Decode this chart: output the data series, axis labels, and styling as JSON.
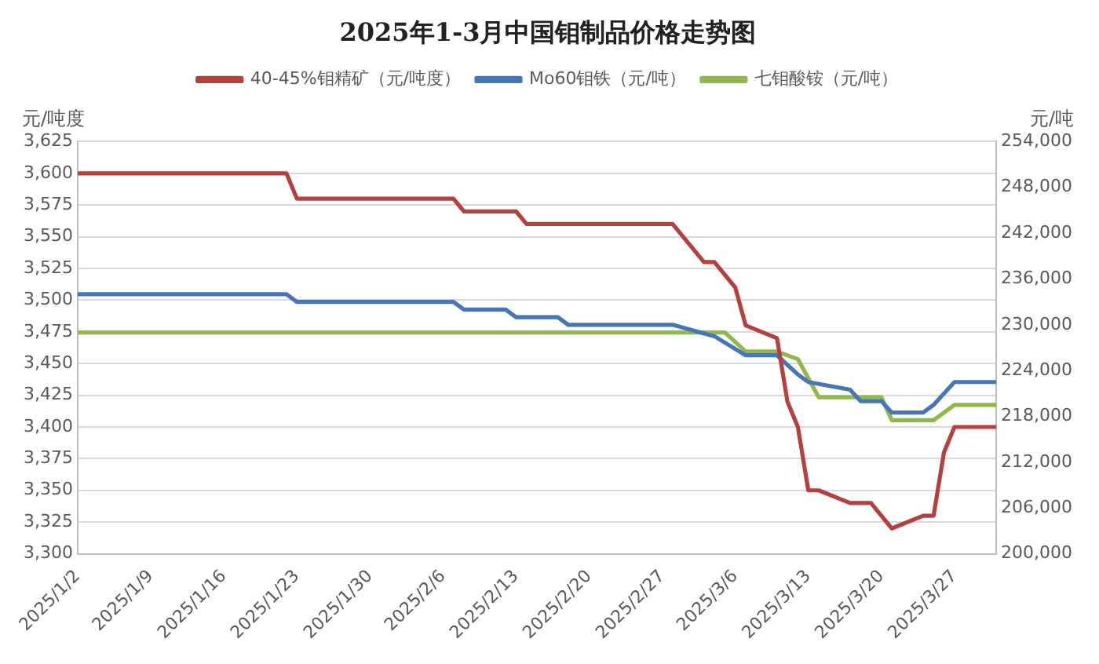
{
  "chart_data": {
    "type": "line",
    "title": "2025年1-3月中国钼制品价格走势图",
    "ylabel": "元/吨度",
    "y2label": "元/吨",
    "xlim": [
      "2025-01-02",
      "2025-03-31"
    ],
    "xticks": [
      {
        "value": "2025-01-02",
        "label": "2025/1/2"
      },
      {
        "value": "2025-01-09",
        "label": "2025/1/9"
      },
      {
        "value": "2025-01-16",
        "label": "2025/1/16"
      },
      {
        "value": "2025-01-23",
        "label": "2025/1/23"
      },
      {
        "value": "2025-01-30",
        "label": "2025/1/30"
      },
      {
        "value": "2025-02-06",
        "label": "2025/2/6"
      },
      {
        "value": "2025-02-13",
        "label": "2025/2/13"
      },
      {
        "value": "2025-02-20",
        "label": "2025/2/20"
      },
      {
        "value": "2025-02-27",
        "label": "2025/2/27"
      },
      {
        "value": "2025-03-06",
        "label": "2025/3/6"
      },
      {
        "value": "2025-03-13",
        "label": "2025/3/13"
      },
      {
        "value": "2025-03-20",
        "label": "2025/3/20"
      },
      {
        "value": "2025-03-27",
        "label": "2025/3/27"
      }
    ],
    "ylim": [
      3300,
      3625
    ],
    "yticks": [
      {
        "value": 3300,
        "label": "3,300"
      },
      {
        "value": 3325,
        "label": "3,325"
      },
      {
        "value": 3350,
        "label": "3,350"
      },
      {
        "value": 3375,
        "label": "3,375"
      },
      {
        "value": 3400,
        "label": "3,400"
      },
      {
        "value": 3425,
        "label": "3,425"
      },
      {
        "value": 3450,
        "label": "3,450"
      },
      {
        "value": 3475,
        "label": "3,475"
      },
      {
        "value": 3500,
        "label": "3,500"
      },
      {
        "value": 3525,
        "label": "3,525"
      },
      {
        "value": 3550,
        "label": "3,550"
      },
      {
        "value": 3575,
        "label": "3,575"
      },
      {
        "value": 3600,
        "label": "3,600"
      },
      {
        "value": 3625,
        "label": "3,625"
      }
    ],
    "y2lim": [
      200000,
      254000
    ],
    "y2ticks": [
      {
        "value": 200000,
        "label": "200,000"
      },
      {
        "value": 206000,
        "label": "206,000"
      },
      {
        "value": 212000,
        "label": "212,000"
      },
      {
        "value": 218000,
        "label": "218,000"
      },
      {
        "value": 224000,
        "label": "224,000"
      },
      {
        "value": 230000,
        "label": "230,000"
      },
      {
        "value": 236000,
        "label": "236,000"
      },
      {
        "value": 242000,
        "label": "242,000"
      },
      {
        "value": 248000,
        "label": "248,000"
      },
      {
        "value": 254000,
        "label": "254,000"
      }
    ],
    "grid": "y",
    "legend": "top",
    "marker": "none",
    "line_style": "solid",
    "series": [
      {
        "name": "40-45%钼精矿（元/吨度）",
        "color": "#b5413f",
        "x": [
          "2025-01-02",
          "2025-01-22",
          "2025-01-23",
          "2025-02-07",
          "2025-02-08",
          "2025-02-13",
          "2025-02-14",
          "2025-02-28",
          "2025-03-03",
          "2025-03-04",
          "2025-03-06",
          "2025-03-07",
          "2025-03-10",
          "2025-03-11",
          "2025-03-12",
          "2025-03-13",
          "2025-03-14",
          "2025-03-17",
          "2025-03-19",
          "2025-03-21",
          "2025-03-24",
          "2025-03-25",
          "2025-03-26",
          "2025-03-27",
          "2025-03-31"
        ],
        "values": [
          3600,
          3600,
          3580,
          3580,
          3570,
          3570,
          3560,
          3560,
          3530,
          3530,
          3510,
          3480,
          3470,
          3420,
          3400,
          3350,
          3350,
          3340,
          3340,
          3320,
          3330,
          3330,
          3380,
          3400,
          3400
        ]
      },
      {
        "name": "Mo60钼铁（元/吨）",
        "color": "#4676b6",
        "axis": "y2",
        "x": [
          "2025-01-02",
          "2025-01-22",
          "2025-01-23",
          "2025-02-07",
          "2025-02-08",
          "2025-02-12",
          "2025-02-13",
          "2025-02-17",
          "2025-02-18",
          "2025-02-28",
          "2025-03-04",
          "2025-03-07",
          "2025-03-10",
          "2025-03-12",
          "2025-03-13",
          "2025-03-17",
          "2025-03-18",
          "2025-03-20",
          "2025-03-21",
          "2025-03-24",
          "2025-03-25",
          "2025-03-27",
          "2025-03-31"
        ],
        "values": [
          234000,
          234000,
          233000,
          233000,
          232000,
          232000,
          231000,
          231000,
          230000,
          230000,
          228500,
          226000,
          226000,
          223500,
          222500,
          221500,
          220000,
          220000,
          218500,
          218500,
          219500,
          222500,
          222500
        ]
      },
      {
        "name": "七钼酸铵（元/吨）",
        "color": "#90b84b",
        "axis": "y2",
        "x": [
          "2025-01-02",
          "2025-03-05",
          "2025-03-07",
          "2025-03-10",
          "2025-03-12",
          "2025-03-14",
          "2025-03-20",
          "2025-03-21",
          "2025-03-25",
          "2025-03-27",
          "2025-03-31"
        ],
        "values": [
          229000,
          229000,
          226500,
          226500,
          225500,
          220500,
          220500,
          217500,
          217500,
          219500,
          219500
        ]
      }
    ]
  }
}
